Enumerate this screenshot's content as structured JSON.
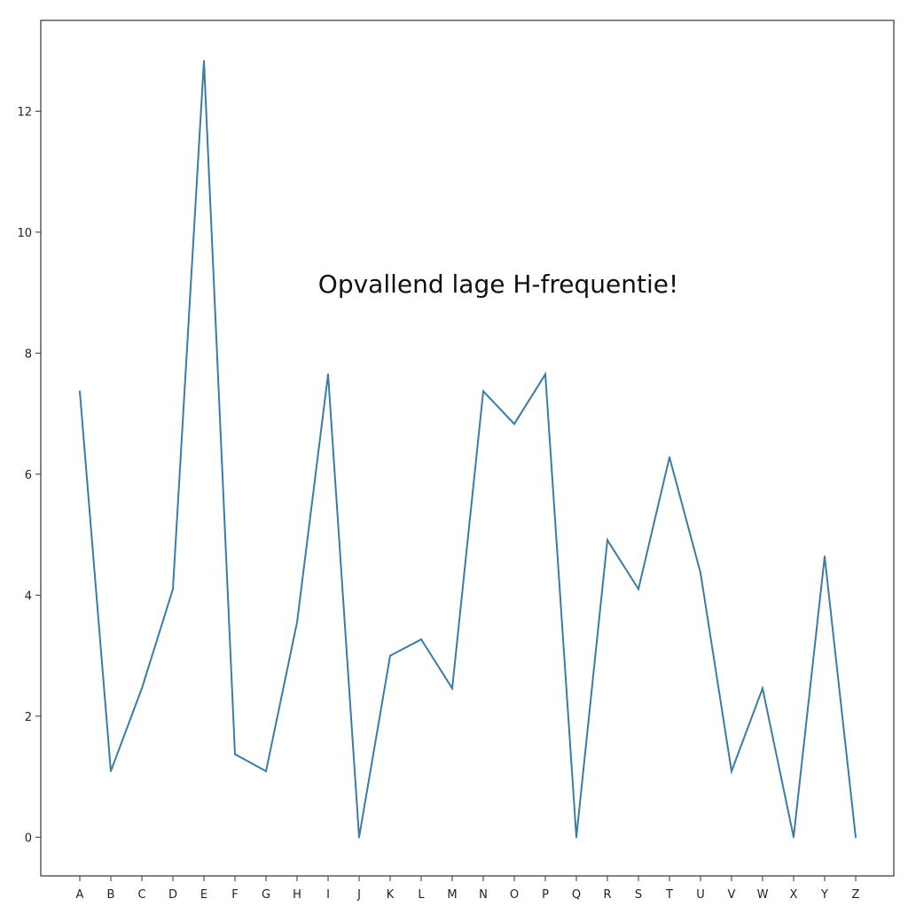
{
  "chart_data": {
    "type": "line",
    "title": "",
    "xlabel": "",
    "ylabel": "",
    "categories": [
      "A",
      "B",
      "C",
      "D",
      "E",
      "F",
      "G",
      "H",
      "I",
      "J",
      "K",
      "L",
      "M",
      "N",
      "O",
      "P",
      "Q",
      "R",
      "S",
      "T",
      "U",
      "V",
      "W",
      "X",
      "Y",
      "Z"
    ],
    "series": [
      {
        "values": [
          7.37,
          1.09,
          2.46,
          4.1,
          12.83,
          1.37,
          1.09,
          3.55,
          7.65,
          0.0,
          3.0,
          3.27,
          2.46,
          7.37,
          6.83,
          7.65,
          0.0,
          4.91,
          4.1,
          6.28,
          4.37,
          1.09,
          2.46,
          0.0,
          4.64,
          0.0
        ],
        "color": "#3a7ca5"
      }
    ],
    "yticks": [
      0,
      2,
      4,
      6,
      8,
      10,
      12
    ],
    "ylim": [
      -0.64,
      13.5
    ],
    "grid": false,
    "legend": "none",
    "annotation": {
      "text": "Opvallend lage H-frequentie!"
    }
  }
}
